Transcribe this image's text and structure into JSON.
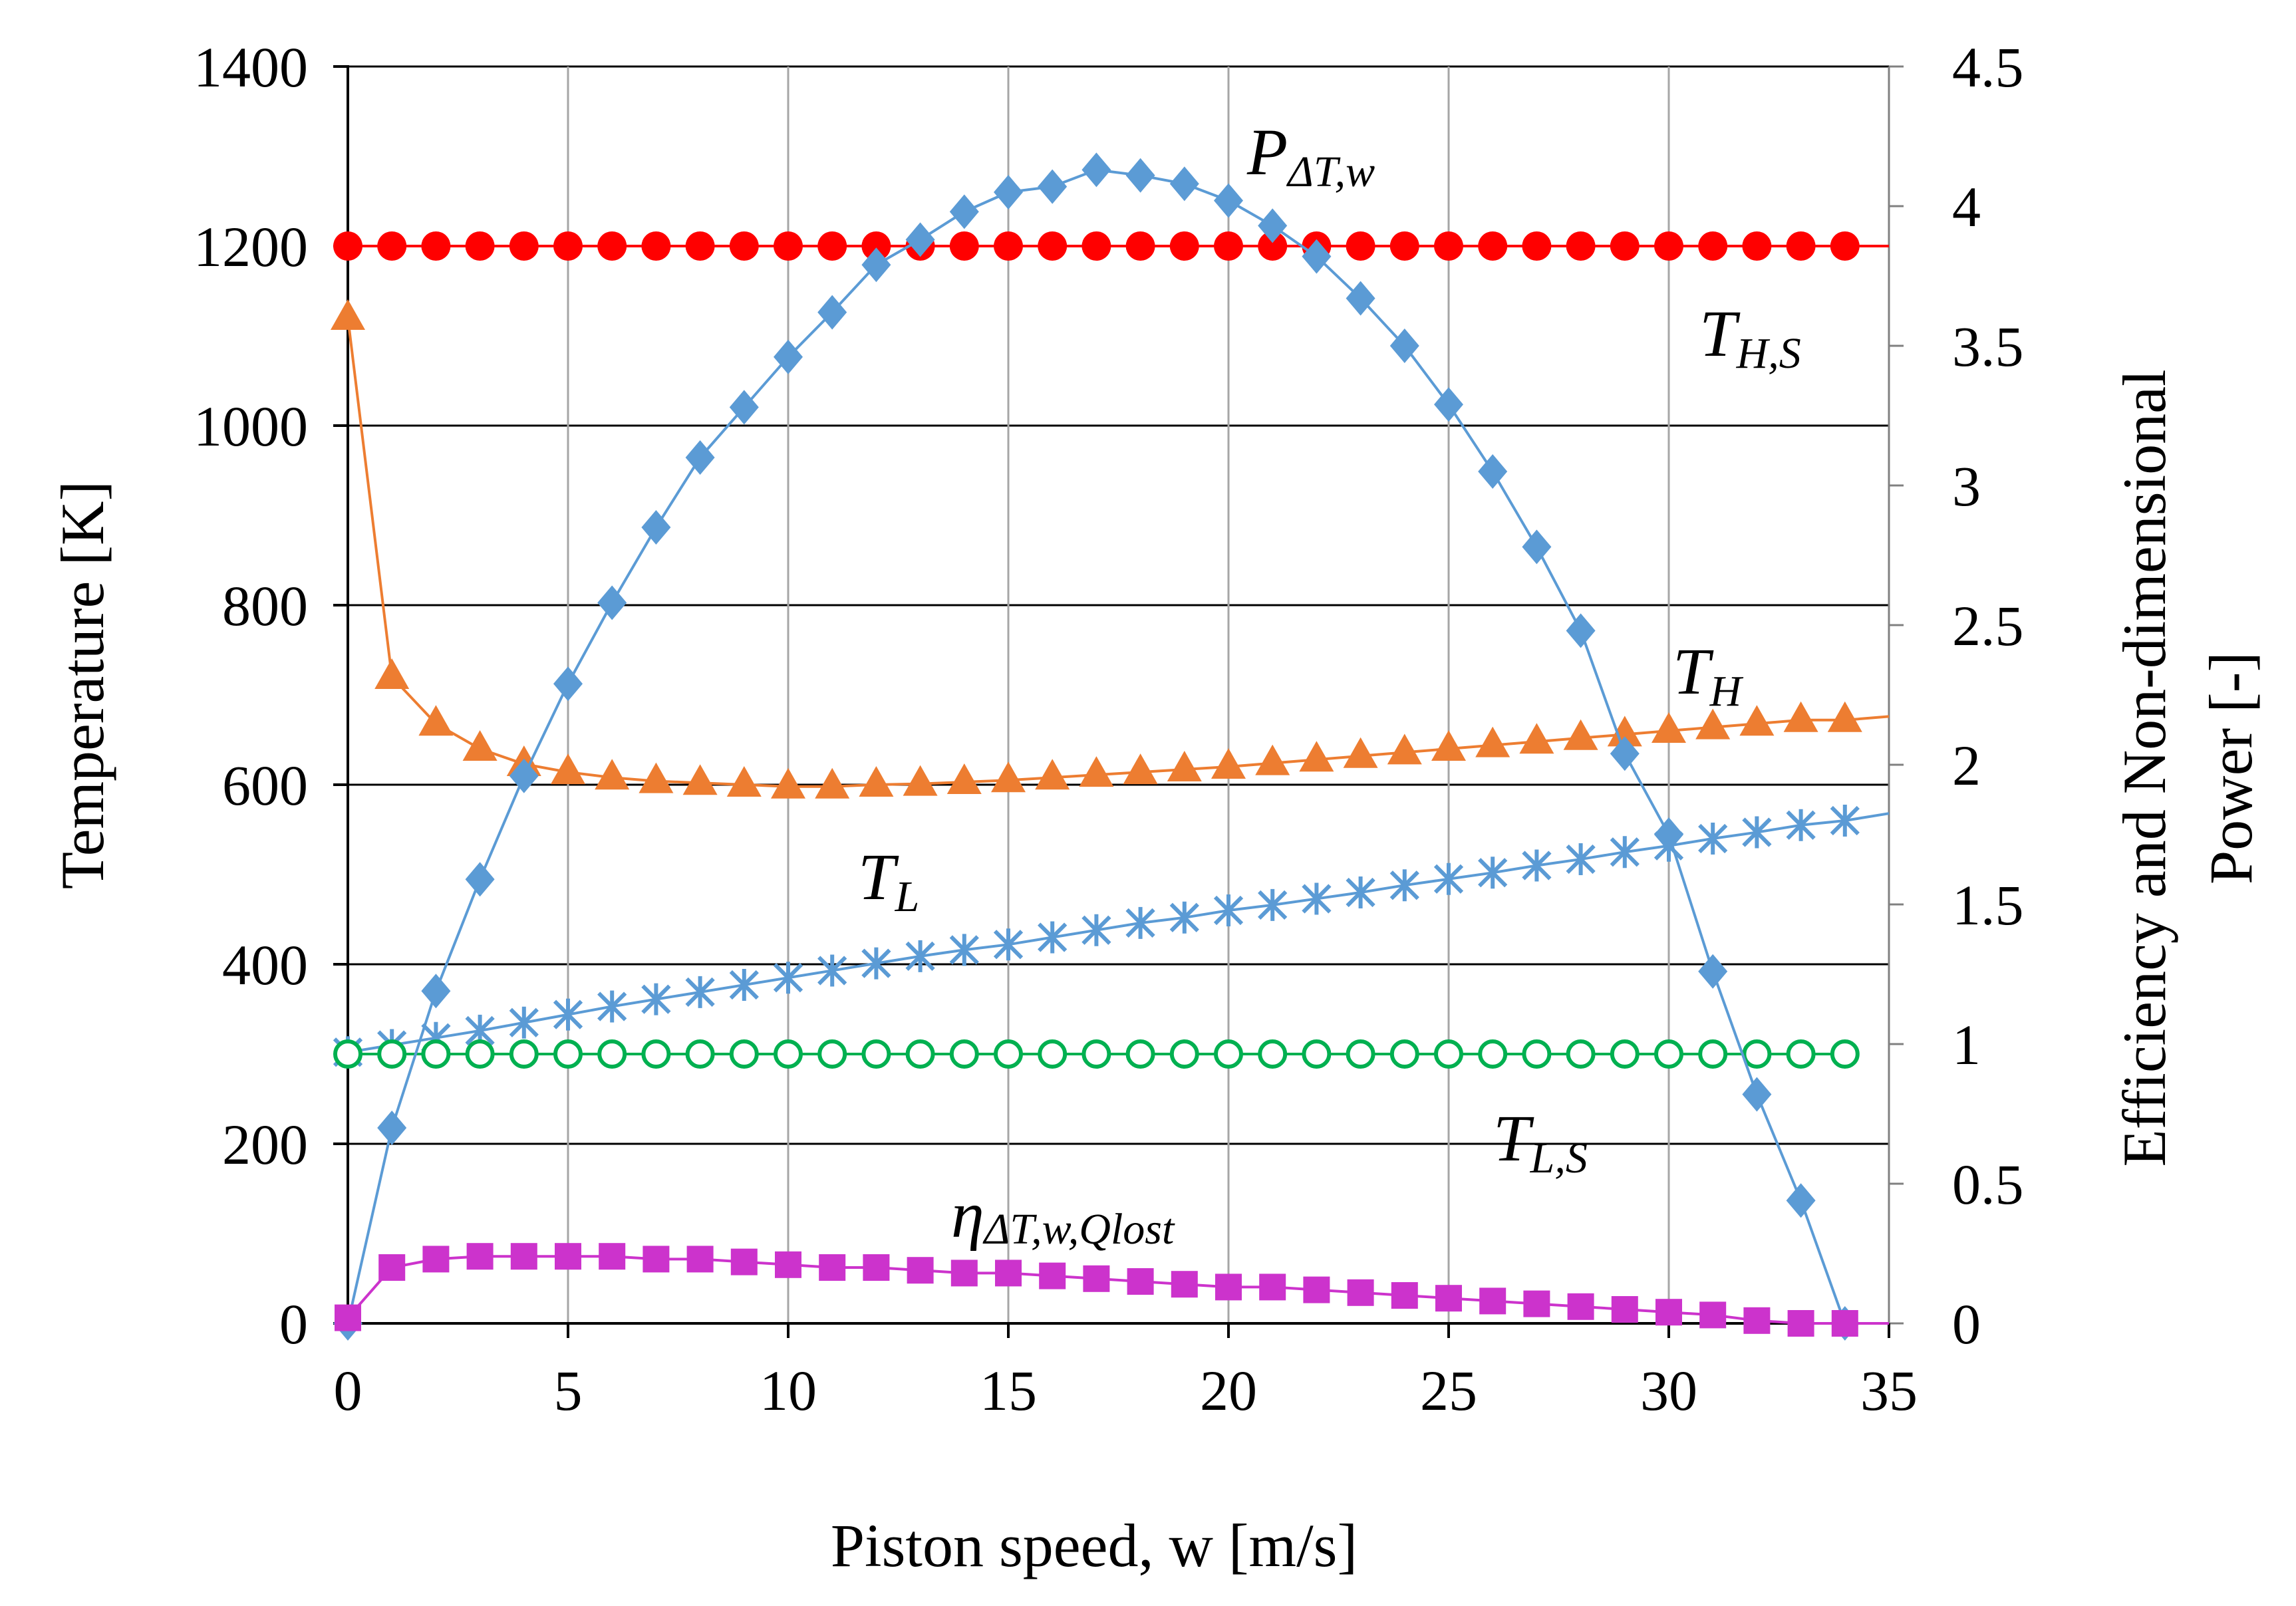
{
  "chart_data": {
    "type": "line",
    "title": "",
    "xlabel": "Piston speed, w [m/s]",
    "ylabel_left": "Temperature [K]",
    "ylabel_right_line1": "Efficiency and Non-dimensional",
    "ylabel_right_line2": "Power [-]",
    "xlim": [
      0,
      35
    ],
    "ylim_left": [
      0,
      1400
    ],
    "ylim_right": [
      0,
      4.5
    ],
    "x_ticks": [
      0,
      5,
      10,
      15,
      20,
      25,
      30,
      35
    ],
    "y_left_ticks": [
      0,
      200,
      400,
      600,
      800,
      1000,
      1200,
      1400
    ],
    "y_right_ticks": [
      0,
      0.5,
      1,
      1.5,
      2,
      2.5,
      3,
      3.5,
      4,
      4.5
    ],
    "grid": true,
    "series": [
      {
        "name": "T_H,S",
        "label_main": "T",
        "label_sub": "H,S",
        "axis": "left",
        "color": "#ff0000",
        "marker": "circle-filled",
        "x": [
          0,
          1,
          2,
          3,
          4,
          5,
          6,
          7,
          8,
          9,
          10,
          11,
          12,
          13,
          14,
          15,
          16,
          17,
          18,
          19,
          20,
          21,
          22,
          23,
          24,
          25,
          26,
          27,
          28,
          29,
          30,
          31,
          32,
          33,
          34,
          35
        ],
        "y": [
          1200,
          1200,
          1200,
          1200,
          1200,
          1200,
          1200,
          1200,
          1200,
          1200,
          1200,
          1200,
          1200,
          1200,
          1200,
          1200,
          1200,
          1200,
          1200,
          1200,
          1200,
          1200,
          1200,
          1200,
          1200,
          1200,
          1200,
          1200,
          1200,
          1200,
          1200,
          1200,
          1200,
          1200,
          1200,
          1200
        ]
      },
      {
        "name": "T_H",
        "label_main": "T",
        "label_sub": "H",
        "axis": "left",
        "color": "#ed7d31",
        "marker": "triangle",
        "x": [
          0,
          1,
          2,
          3,
          4,
          5,
          6,
          7,
          8,
          9,
          10,
          11,
          12,
          13,
          14,
          15,
          16,
          17,
          18,
          19,
          20,
          21,
          22,
          23,
          24,
          25,
          26,
          27,
          28,
          29,
          30,
          31,
          32,
          33,
          34,
          35
        ],
        "y": [
          1120,
          720,
          668,
          640,
          623,
          614,
          608,
          604,
          602,
          600,
          598,
          598,
          600,
          601,
          603,
          605,
          608,
          611,
          614,
          617,
          620,
          624,
          628,
          632,
          636,
          640,
          644,
          648,
          652,
          656,
          660,
          664,
          668,
          672,
          672,
          676
        ]
      },
      {
        "name": "T_L",
        "label_main": "T",
        "label_sub": "L",
        "axis": "left",
        "color": "#5b9bd5",
        "marker": "asterisk",
        "x": [
          0,
          1,
          2,
          3,
          4,
          5,
          6,
          7,
          8,
          9,
          10,
          11,
          12,
          13,
          14,
          15,
          16,
          17,
          18,
          19,
          20,
          21,
          22,
          23,
          24,
          25,
          26,
          27,
          28,
          29,
          30,
          31,
          32,
          33,
          34,
          35
        ],
        "y": [
          302,
          310,
          318,
          326,
          335,
          344,
          353,
          361,
          369,
          377,
          385,
          393,
          401,
          409,
          416,
          422,
          430,
          438,
          446,
          452,
          460,
          466,
          473,
          480,
          488,
          495,
          502,
          510,
          517,
          525,
          532,
          540,
          547,
          555,
          560,
          568
        ]
      },
      {
        "name": "T_L,S",
        "label_main": "T",
        "label_sub": "L,S",
        "axis": "left",
        "color": "#00b050",
        "marker": "circle-open",
        "x": [
          0,
          1,
          2,
          3,
          4,
          5,
          6,
          7,
          8,
          9,
          10,
          11,
          12,
          13,
          14,
          15,
          16,
          17,
          18,
          19,
          20,
          21,
          22,
          23,
          24,
          25,
          26,
          27,
          28,
          29,
          30,
          31,
          32,
          33,
          34
        ],
        "y": [
          300,
          300,
          300,
          300,
          300,
          300,
          300,
          300,
          300,
          300,
          300,
          300,
          300,
          300,
          300,
          300,
          300,
          300,
          300,
          300,
          300,
          300,
          300,
          300,
          300,
          300,
          300,
          300,
          300,
          300,
          300,
          300,
          300,
          300,
          300
        ]
      },
      {
        "name": "P_ΔT,w",
        "label_main": "P",
        "label_sub": "ΔT,w",
        "axis": "right",
        "color": "#5b9bd5",
        "marker": "diamond",
        "x": [
          0,
          1,
          2,
          3,
          4,
          5,
          6,
          7,
          8,
          9,
          10,
          11,
          12,
          13,
          14,
          15,
          16,
          17,
          18,
          19,
          20,
          21,
          22,
          23,
          24,
          25,
          26,
          27,
          28,
          29,
          30,
          31,
          32,
          33,
          34,
          35
        ],
        "y": [
          0,
          0.7,
          1.19,
          1.59,
          1.96,
          2.29,
          2.58,
          2.85,
          3.1,
          3.28,
          3.46,
          3.62,
          3.79,
          3.88,
          3.98,
          4.05,
          4.07,
          4.13,
          4.11,
          4.08,
          4.02,
          3.93,
          3.82,
          3.67,
          3.5,
          3.29,
          3.05,
          2.78,
          2.48,
          2.04,
          1.75,
          1.26,
          0.82,
          0.44,
          0,
          0
        ]
      },
      {
        "name": "η_ΔT,w,Qlost",
        "label_main": "η",
        "label_sub": "ΔT,w,Qlost",
        "axis": "right",
        "color": "#cc33cc",
        "marker": "square",
        "x": [
          0,
          1,
          2,
          3,
          4,
          5,
          6,
          7,
          8,
          9,
          10,
          11,
          12,
          13,
          14,
          15,
          16,
          17,
          18,
          19,
          20,
          21,
          22,
          23,
          24,
          25,
          26,
          27,
          28,
          29,
          30,
          31,
          32,
          33,
          34,
          35
        ],
        "y": [
          0.02,
          0.2,
          0.23,
          0.24,
          0.24,
          0.24,
          0.24,
          0.23,
          0.23,
          0.22,
          0.21,
          0.2,
          0.2,
          0.19,
          0.18,
          0.18,
          0.17,
          0.16,
          0.15,
          0.14,
          0.13,
          0.13,
          0.12,
          0.11,
          0.1,
          0.09,
          0.08,
          0.07,
          0.06,
          0.05,
          0.04,
          0.03,
          0.01,
          0,
          0,
          0
        ]
      }
    ]
  }
}
